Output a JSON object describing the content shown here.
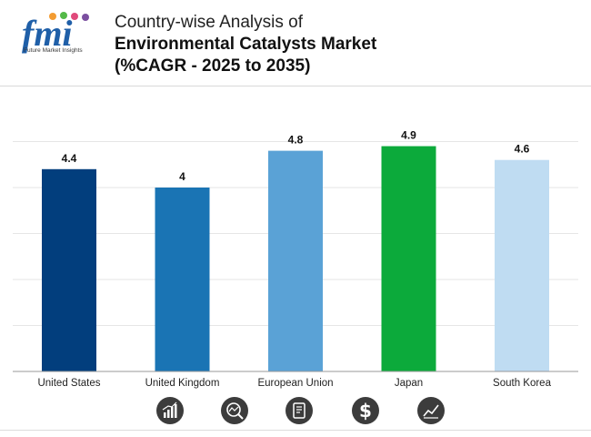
{
  "header": {
    "logo_text": "fmi",
    "logo_subtitle": "Future Market Insights",
    "title_line1": "Country-wise Analysis of",
    "title_line2": "Environmental Catalysts Market",
    "title_line3": "(%CAGR - 2025 to 2035)"
  },
  "chart_data": {
    "type": "bar",
    "title": "Country-wise Analysis of Environmental Catalysts Market (%CAGR - 2025 to 2035)",
    "categories": [
      "United States",
      "United Kingdom",
      "European Union",
      "Japan",
      "South Korea"
    ],
    "values": [
      4.4,
      4,
      4.8,
      4.9,
      4.6
    ],
    "value_labels": [
      "4.4",
      "4",
      "4.8",
      "4.9",
      "4.6"
    ],
    "bar_colors": [
      "#023e7d",
      "#1a74b4",
      "#5aa2d6",
      "#0caa3b",
      "#bfdcf2"
    ],
    "xlabel": "",
    "ylabel": "",
    "ylim": [
      0,
      5
    ],
    "grid": true,
    "legend": "none"
  },
  "footer_icons": [
    "bar-chart-growth-icon",
    "chart-search-icon",
    "report-document-icon",
    "dollar-icon",
    "trend-line-icon"
  ]
}
